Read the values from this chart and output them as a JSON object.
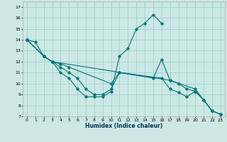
{
  "xlabel": "Humidex (Indice chaleur)",
  "bg_color": "#cce8e4",
  "grid_color": "#99cccc",
  "line_color": "#007777",
  "xlim": [
    -0.5,
    23.5
  ],
  "ylim": [
    7,
    17.5
  ],
  "xticks": [
    0,
    1,
    2,
    3,
    4,
    5,
    6,
    7,
    8,
    9,
    10,
    11,
    12,
    13,
    14,
    15,
    16,
    17,
    18,
    19,
    20,
    21,
    22,
    23
  ],
  "yticks": [
    7,
    8,
    9,
    10,
    11,
    12,
    13,
    14,
    15,
    16,
    17
  ],
  "lines": [
    {
      "x": [
        0,
        1,
        2,
        3,
        4,
        5,
        6,
        7,
        8,
        9,
        10,
        11,
        12,
        13,
        14,
        15,
        16
      ],
      "y": [
        14,
        13.8,
        12.5,
        12.0,
        11.0,
        10.5,
        9.5,
        8.8,
        8.8,
        8.8,
        9.3,
        12.5,
        13.2,
        15.0,
        15.5,
        16.3,
        15.5
      ]
    },
    {
      "x": [
        0,
        2,
        3,
        4,
        5,
        10,
        11,
        15,
        16,
        17,
        20,
        21,
        22,
        23
      ],
      "y": [
        14,
        12.5,
        12.0,
        11.8,
        11.5,
        10.0,
        11.0,
        10.5,
        12.2,
        10.3,
        9.5,
        8.5,
        7.5,
        7.2
      ]
    },
    {
      "x": [
        0,
        2,
        3,
        4,
        5,
        6,
        7,
        8,
        9,
        10,
        11,
        16,
        17,
        18,
        19,
        20,
        21,
        22,
        23
      ],
      "y": [
        14,
        12.5,
        12.0,
        11.5,
        11.0,
        10.5,
        9.5,
        9.0,
        9.0,
        9.5,
        11.0,
        10.5,
        9.5,
        9.2,
        8.8,
        9.3,
        8.5,
        7.5,
        7.2
      ]
    },
    {
      "x": [
        0,
        2,
        3,
        17,
        18,
        19,
        20,
        21,
        22,
        23
      ],
      "y": [
        14,
        12.5,
        12.0,
        10.3,
        10.0,
        9.5,
        9.3,
        8.5,
        7.5,
        7.2
      ]
    }
  ]
}
